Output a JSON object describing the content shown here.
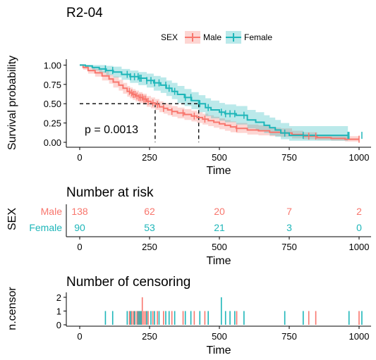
{
  "colors": {
    "male": "#F8766D",
    "female": "#1EB6B9",
    "male_band": "#F8766D",
    "female_band": "#1EB6B9"
  },
  "chart_data": [
    {
      "type": "line",
      "subtype": "kaplan-meier",
      "title": "R2-04",
      "xlabel": "Time",
      "ylabel": "Survival probability",
      "xlim": [
        0,
        1030
      ],
      "ylim": [
        0,
        1.05
      ],
      "x_ticks": [
        "0",
        "250",
        "500",
        "750",
        "1000"
      ],
      "y_ticks": [
        "0.00",
        "0.25",
        "0.50",
        "0.75",
        "1.00"
      ],
      "legend": {
        "title": "SEX",
        "position": "top",
        "labels": [
          "Male",
          "Female"
        ]
      },
      "annotation": "p = 0.0013",
      "median_survival": {
        "Male": 270,
        "Female": 426
      },
      "series": [
        {
          "name": "Male",
          "x": [
            0,
            12,
            30,
            55,
            80,
            105,
            120,
            140,
            155,
            170,
            180,
            190,
            200,
            212,
            225,
            240,
            255,
            270,
            285,
            300,
            315,
            330,
            350,
            375,
            400,
            420,
            440,
            460,
            480,
            500,
            520,
            540,
            560,
            600,
            640,
            680,
            720,
            760,
            800,
            850,
            900,
            950,
            1000
          ],
          "y": [
            1.0,
            0.97,
            0.93,
            0.9,
            0.86,
            0.82,
            0.78,
            0.74,
            0.7,
            0.66,
            0.64,
            0.62,
            0.6,
            0.58,
            0.56,
            0.53,
            0.51,
            0.49,
            0.46,
            0.44,
            0.42,
            0.4,
            0.38,
            0.36,
            0.34,
            0.32,
            0.3,
            0.28,
            0.26,
            0.24,
            0.22,
            0.2,
            0.18,
            0.16,
            0.15,
            0.13,
            0.12,
            0.1,
            0.08,
            0.06,
            0.05,
            0.04,
            0.04
          ],
          "lower": [
            1.0,
            0.94,
            0.89,
            0.85,
            0.8,
            0.76,
            0.71,
            0.67,
            0.63,
            0.59,
            0.57,
            0.55,
            0.53,
            0.51,
            0.49,
            0.46,
            0.44,
            0.42,
            0.39,
            0.37,
            0.35,
            0.33,
            0.31,
            0.29,
            0.27,
            0.25,
            0.23,
            0.21,
            0.19,
            0.17,
            0.15,
            0.13,
            0.12,
            0.1,
            0.09,
            0.08,
            0.07,
            0.05,
            0.04,
            0.03,
            0.02,
            0.01,
            0.01
          ],
          "upper": [
            1.0,
            1.0,
            0.97,
            0.95,
            0.92,
            0.88,
            0.85,
            0.81,
            0.77,
            0.73,
            0.71,
            0.69,
            0.67,
            0.65,
            0.63,
            0.6,
            0.58,
            0.56,
            0.53,
            0.51,
            0.49,
            0.47,
            0.45,
            0.43,
            0.41,
            0.39,
            0.37,
            0.35,
            0.33,
            0.31,
            0.29,
            0.27,
            0.25,
            0.23,
            0.22,
            0.19,
            0.18,
            0.15,
            0.13,
            0.1,
            0.09,
            0.08,
            0.08
          ]
        },
        {
          "name": "Female",
          "x": [
            0,
            20,
            45,
            70,
            95,
            120,
            150,
            180,
            210,
            240,
            265,
            290,
            310,
            330,
            350,
            375,
            400,
            426,
            450,
            470,
            500,
            520,
            560,
            600,
            630,
            660,
            680,
            700,
            720,
            750,
            800,
            850,
            900,
            960
          ],
          "y": [
            1.0,
            0.99,
            0.97,
            0.95,
            0.93,
            0.91,
            0.88,
            0.85,
            0.83,
            0.8,
            0.77,
            0.74,
            0.7,
            0.66,
            0.62,
            0.58,
            0.54,
            0.5,
            0.45,
            0.42,
            0.39,
            0.37,
            0.35,
            0.29,
            0.26,
            0.22,
            0.19,
            0.16,
            0.12,
            0.09,
            0.09,
            0.09,
            0.09,
            0.09
          ],
          "lower": [
            1.0,
            0.97,
            0.93,
            0.9,
            0.87,
            0.84,
            0.81,
            0.77,
            0.74,
            0.71,
            0.67,
            0.64,
            0.6,
            0.56,
            0.51,
            0.47,
            0.43,
            0.39,
            0.34,
            0.31,
            0.28,
            0.26,
            0.23,
            0.18,
            0.15,
            0.12,
            0.09,
            0.07,
            0.04,
            0.02,
            0.02,
            0.02,
            0.02,
            0.02
          ],
          "upper": [
            1.0,
            1.0,
            1.0,
            1.0,
            0.99,
            0.98,
            0.95,
            0.93,
            0.91,
            0.89,
            0.86,
            0.84,
            0.8,
            0.77,
            0.73,
            0.69,
            0.65,
            0.61,
            0.57,
            0.54,
            0.51,
            0.49,
            0.47,
            0.42,
            0.39,
            0.35,
            0.32,
            0.29,
            0.25,
            0.21,
            0.21,
            0.21,
            0.21,
            0.21
          ]
        }
      ]
    },
    {
      "type": "table",
      "title": "Number at risk",
      "xlabel": "Time",
      "ylabel": "SEX",
      "x": [
        0,
        250,
        500,
        750,
        1000
      ],
      "x_ticks": [
        "0",
        "250",
        "500",
        "750",
        "1000"
      ],
      "rows": [
        {
          "name": "Male",
          "values": [
            "138",
            "62",
            "20",
            "7",
            "2"
          ]
        },
        {
          "name": "Female",
          "values": [
            "90",
            "53",
            "21",
            "3",
            "0"
          ]
        }
      ]
    },
    {
      "type": "bar",
      "title": "Number of censoring",
      "xlabel": "Time",
      "ylabel": "n.censor",
      "xlim": [
        0,
        1030
      ],
      "ylim": [
        0,
        2
      ],
      "x_ticks": [
        "0",
        "250",
        "500",
        "750",
        "1000"
      ],
      "y_ticks": [
        "0",
        "1",
        "2"
      ],
      "series": [
        {
          "name": "Male",
          "x": [
            178,
            186,
            192,
            198,
            205,
            212,
            218,
            224,
            230,
            236,
            245,
            262,
            278,
            300,
            330,
            370,
            410,
            448,
            562,
            820,
            845,
            1000
          ],
          "values": [
            1,
            1,
            1,
            1,
            1,
            1,
            1,
            2,
            1,
            1,
            1,
            1,
            1,
            1,
            1,
            1,
            1,
            1,
            1,
            1,
            1,
            1
          ]
        },
        {
          "name": "Female",
          "x": [
            92,
            118,
            170,
            182,
            196,
            209,
            215,
            220,
            240,
            255,
            268,
            284,
            308,
            320,
            340,
            378,
            398,
            430,
            460,
            507,
            522,
            538,
            555,
            588,
            734,
            800,
            964,
            1010
          ],
          "values": [
            1,
            1,
            1,
            1,
            1,
            1,
            1,
            1,
            1,
            1,
            1,
            1,
            1,
            1,
            1,
            1,
            1,
            1,
            1,
            2,
            1,
            1,
            1,
            1,
            1,
            1,
            1,
            1
          ]
        }
      ]
    }
  ]
}
